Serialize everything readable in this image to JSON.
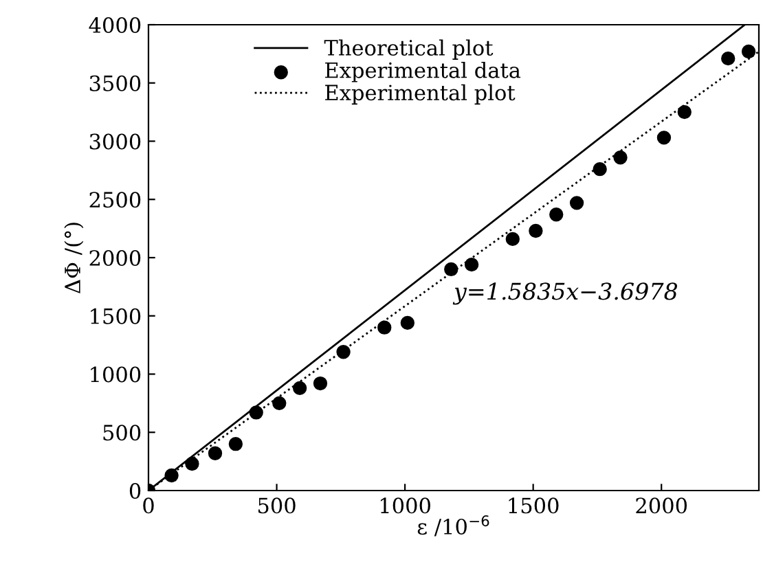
{
  "chart_data": {
    "type": "scatter",
    "xlabel": "ε /10$^{−6}$",
    "ylabel": "ΔΦ /(°)",
    "xlim": [
      0,
      2380
    ],
    "ylim": [
      0,
      4000
    ],
    "xticks": [
      0,
      500,
      1000,
      1500,
      2000
    ],
    "yticks": [
      0,
      500,
      1000,
      1500,
      2000,
      2500,
      3000,
      3500,
      4000
    ],
    "grid": false,
    "legend": "top left",
    "annotations": [
      "y=1.5835x−3.6978"
    ],
    "series": [
      {
        "name": "Theoretical plot",
        "type": "line",
        "line_style": "solid",
        "color": "#000000",
        "x": [
          0,
          2325
        ],
        "values": [
          0,
          4000
        ]
      },
      {
        "name": "Experimental data",
        "marker": "circle",
        "color": "#000000",
        "x": [
          0,
          90,
          170,
          260,
          340,
          420,
          510,
          590,
          670,
          760,
          920,
          1010,
          1180,
          1260,
          1420,
          1510,
          1590,
          1670,
          1760,
          1840,
          2010,
          2090,
          2260,
          2340
        ],
        "values": [
          0,
          130,
          230,
          320,
          400,
          670,
          750,
          880,
          920,
          1190,
          1400,
          1440,
          1900,
          1940,
          2160,
          2230,
          2370,
          2470,
          2760,
          2860,
          3030,
          3250,
          3710,
          3770
        ]
      },
      {
        "name": "Experimental plot",
        "type": "line",
        "line_style": "dotted",
        "color": "#000000",
        "x": [
          0,
          2380
        ],
        "values": [
          0,
          3770
        ]
      }
    ]
  }
}
